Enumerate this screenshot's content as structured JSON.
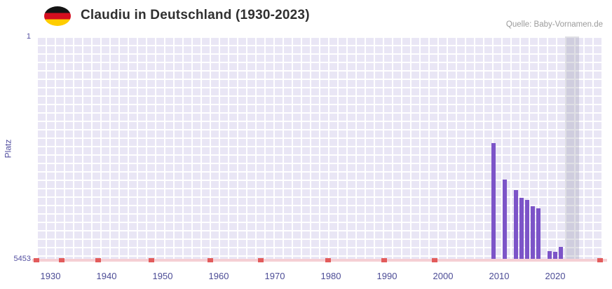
{
  "header": {
    "title": "Claudiu in Deutschland (1930-2023)",
    "source": "Quelle: Baby-Vornamen.de",
    "flag": "germany-flag-icon"
  },
  "chart_data": {
    "type": "bar",
    "title": "Claudiu in Deutschland (1930-2023)",
    "xlabel": "",
    "ylabel": "Platz",
    "y_axis": {
      "top_label": "1",
      "bottom_label": "5453",
      "min": 1,
      "max": 5453,
      "inverted": true
    },
    "x_axis": {
      "min": 1927.5,
      "max": 2028.5,
      "tick_years": [
        1930,
        1940,
        1950,
        1960,
        1970,
        1980,
        1990,
        2000,
        2010,
        2020
      ]
    },
    "series": [
      {
        "name": "Platz",
        "points": [
          {
            "year": 2009,
            "rank": 2600
          },
          {
            "year": 2011,
            "rank": 3500
          },
          {
            "year": 2013,
            "rank": 3750
          },
          {
            "year": 2014,
            "rank": 3950
          },
          {
            "year": 2015,
            "rank": 4000
          },
          {
            "year": 2016,
            "rank": 4150
          },
          {
            "year": 2017,
            "rank": 4200
          },
          {
            "year": 2019,
            "rank": 5250
          },
          {
            "year": 2020,
            "rank": 5270
          },
          {
            "year": 2021,
            "rank": 5150
          }
        ]
      }
    ],
    "no_data_marker_years": [
      1927.5,
      1932,
      1938.5,
      1948,
      1958.5,
      1967.5,
      1979.5,
      1989.5,
      1998.5,
      2028
    ],
    "highlight_band": {
      "from_year": 2021.8,
      "to_year": 2024.3
    },
    "legend": "none",
    "grid": "on",
    "colors": {
      "bar": "#7c54c8",
      "axis_text": "#534fa0",
      "grid_cell": "#e9e6f5",
      "axis_line": "#f5cfd4",
      "marker": "#e25b5b",
      "band": "#dfdee8"
    }
  }
}
